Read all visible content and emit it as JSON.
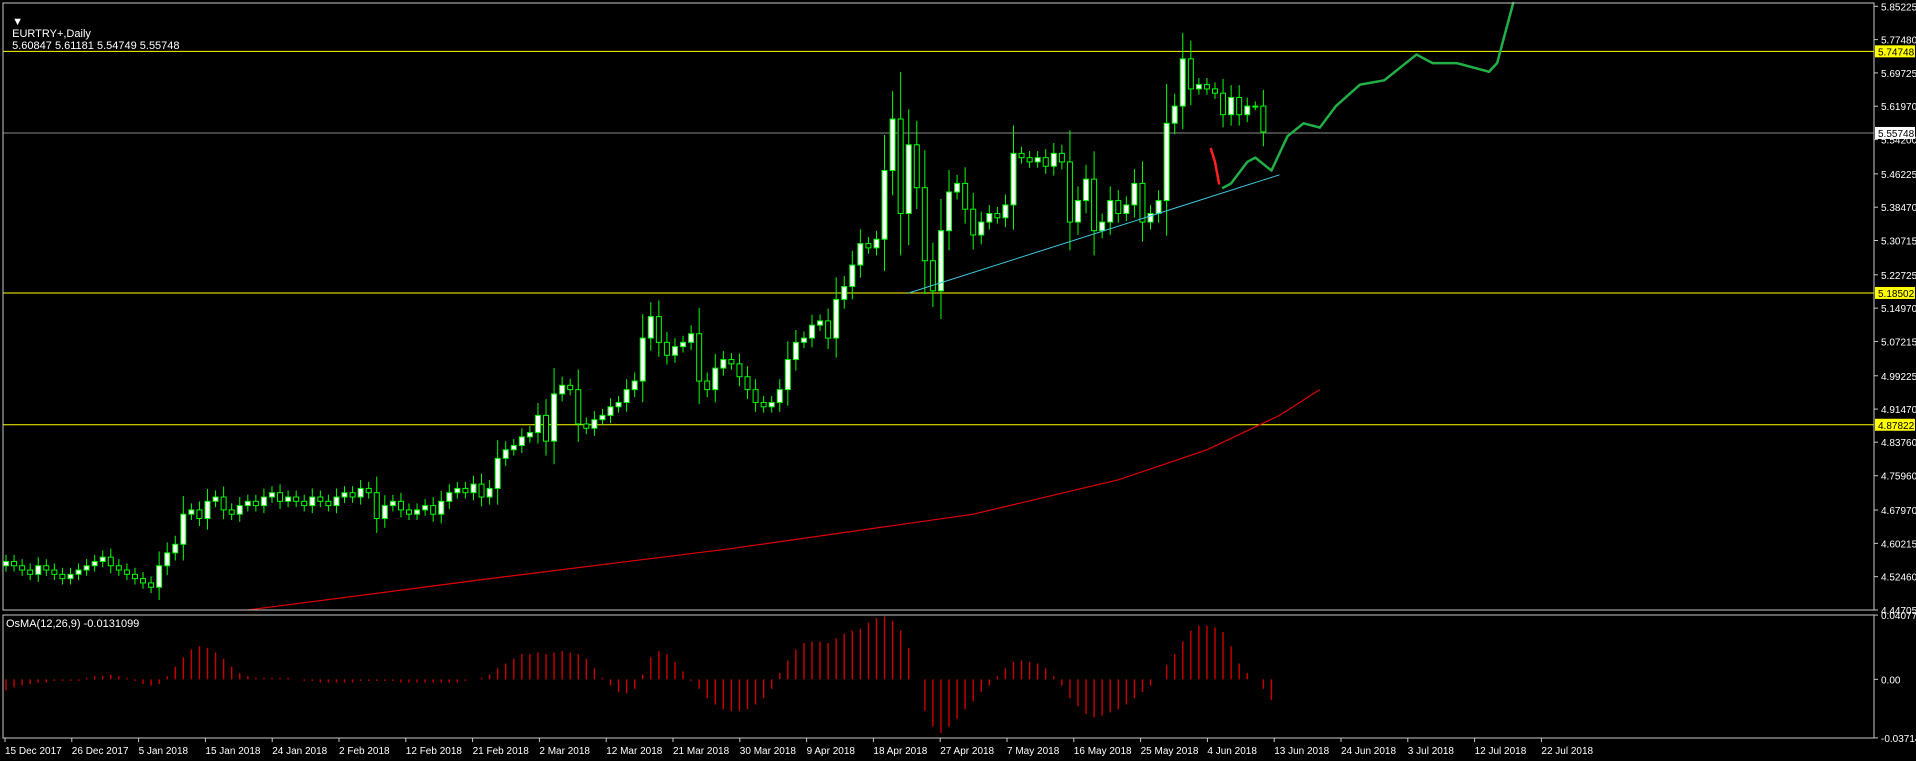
{
  "header": {
    "symbol": "EURTRY+,Daily",
    "ohlc": "5.60847 5.61181 5.54749 5.55748"
  },
  "indicator_header": "OsMA(12,26,9) -0.0131099",
  "colors": {
    "background": "#000000",
    "frame": "#c8c8c8",
    "bull_candle": "#ffffff",
    "bear_candle": "#000000",
    "candle_outline": "#00ff00",
    "level_line": "#ffff00",
    "current_line": "#8c8c8c",
    "trendline": "#40c8e0",
    "ma_line": "#e00000",
    "projection_green": "#22b046",
    "projection_red": "#ff2020",
    "osma_bar": "#cc0000",
    "text": "#ffffff"
  },
  "chart_data": [
    {
      "type": "candlestick",
      "symbol": "EURTRY+",
      "timeframe": "Daily",
      "ylim": [
        4.447,
        5.86
      ],
      "price_ticks": [
        "5.85225",
        "5.77480",
        "5.69725",
        "5.61970",
        "5.54200",
        "5.46225",
        "5.38470",
        "5.30715",
        "5.22725",
        "5.14970",
        "5.07215",
        "4.99225",
        "4.91470",
        "4.83760",
        "4.75960",
        "4.67970",
        "4.60215",
        "4.52460",
        "4.44705"
      ],
      "date_labels": [
        "15 Dec 2017",
        "26 Dec 2017",
        "5 Jan 2018",
        "15 Jan 2018",
        "24 Jan 2018",
        "2 Feb 2018",
        "12 Feb 2018",
        "21 Feb 2018",
        "2 Mar 2018",
        "12 Mar 2018",
        "21 Mar 2018",
        "30 Mar 2018",
        "9 Apr 2018",
        "18 Apr 2018",
        "27 Apr 2018",
        "7 May 2018",
        "16 May 2018",
        "25 May 2018",
        "4 Jun 2018",
        "13 Jun 2018",
        "24 Jun 2018",
        "3 Jul 2018",
        "12 Jul 2018",
        "22 Jul 2018"
      ],
      "close_series": [
        4.56,
        4.55,
        4.54,
        4.53,
        4.55,
        4.54,
        4.53,
        4.52,
        4.53,
        4.54,
        4.55,
        4.56,
        4.57,
        4.55,
        4.54,
        4.53,
        4.52,
        4.51,
        4.5,
        4.55,
        4.58,
        4.6,
        4.67,
        4.68,
        4.66,
        4.7,
        4.71,
        4.68,
        4.67,
        4.69,
        4.7,
        4.69,
        4.71,
        4.72,
        4.7,
        4.71,
        4.7,
        4.69,
        4.71,
        4.7,
        4.69,
        4.71,
        4.72,
        4.71,
        4.73,
        4.72,
        4.66,
        4.69,
        4.7,
        4.68,
        4.67,
        4.68,
        4.69,
        4.67,
        4.7,
        4.72,
        4.73,
        4.72,
        4.74,
        4.71,
        4.73,
        4.8,
        4.82,
        4.83,
        4.85,
        4.86,
        4.9,
        4.84,
        4.95,
        4.97,
        4.96,
        4.88,
        4.87,
        4.89,
        4.9,
        4.92,
        4.93,
        4.96,
        4.98,
        5.08,
        5.13,
        5.07,
        5.04,
        5.06,
        5.07,
        5.09,
        4.98,
        4.96,
        5.01,
        5.03,
        5.02,
        4.99,
        4.96,
        4.93,
        4.92,
        4.93,
        4.96,
        5.03,
        5.07,
        5.08,
        5.11,
        5.12,
        5.08,
        5.17,
        5.2,
        5.25,
        5.3,
        5.29,
        5.31,
        5.47,
        5.59,
        5.37,
        5.53,
        5.43,
        5.26,
        5.19,
        5.33,
        5.42,
        5.44,
        5.38,
        5.32,
        5.35,
        5.37,
        5.36,
        5.39,
        5.51,
        5.5,
        5.49,
        5.5,
        5.48,
        5.51,
        5.49,
        5.35,
        5.4,
        5.45,
        5.33,
        5.35,
        5.4,
        5.37,
        5.39,
        5.44,
        5.35,
        5.37,
        5.4,
        5.58,
        5.62,
        5.73,
        5.66,
        5.67,
        5.66,
        5.65,
        5.6,
        5.64,
        5.6,
        5.62,
        5.62,
        5.56
      ],
      "last_price": 5.55748,
      "levels": [
        5.74748,
        5.18502,
        4.87822
      ],
      "current_price_label": "5.55748",
      "ma_line": [
        [
          30,
          4.447
        ],
        [
          60,
          4.52
        ],
        [
          90,
          4.59
        ],
        [
          120,
          4.67
        ],
        [
          138,
          4.75
        ],
        [
          149,
          4.82
        ],
        [
          158,
          4.9
        ],
        [
          163,
          4.96
        ]
      ],
      "trendline": [
        [
          112,
          5.185
        ],
        [
          158,
          5.46
        ]
      ],
      "projection_red": [
        [
          149.5,
          5.52
        ],
        [
          150,
          5.49
        ],
        [
          150.5,
          5.44
        ]
      ],
      "projection_green": [
        [
          151,
          5.43
        ],
        [
          152,
          5.44
        ],
        [
          154,
          5.49
        ],
        [
          155,
          5.5
        ],
        [
          157,
          5.47
        ],
        [
          158,
          5.51
        ],
        [
          159,
          5.55
        ],
        [
          161,
          5.58
        ],
        [
          163,
          5.57
        ],
        [
          165,
          5.62
        ],
        [
          168,
          5.67
        ],
        [
          171,
          5.68
        ],
        [
          173,
          5.71
        ],
        [
          175,
          5.74
        ],
        [
          177,
          5.72
        ],
        [
          180,
          5.72
        ],
        [
          182,
          5.71
        ],
        [
          184,
          5.7
        ],
        [
          185,
          5.72
        ],
        [
          186,
          5.79
        ],
        [
          187,
          5.86
        ]
      ]
    },
    {
      "type": "bar",
      "title": "OsMA(12,26,9) -0.0131099",
      "ylim": [
        -0.0372,
        0.0408
      ],
      "ticks": [
        "0.040773",
        "0.00",
        "-0.037143"
      ],
      "values": [
        -0.007,
        -0.005,
        -0.004,
        -0.003,
        -0.002,
        -0.002,
        -0.001,
        -0.001,
        -0.001,
        -0.001,
        0.001,
        0.002,
        0.002,
        0.003,
        0.002,
        0.001,
        -0.001,
        -0.003,
        -0.004,
        -0.003,
        0.002,
        0.008,
        0.014,
        0.019,
        0.021,
        0.02,
        0.017,
        0.013,
        0.008,
        0.004,
        0.002,
        0.001,
        0.001,
        0.001,
        0.001,
        0.001,
        0.0,
        -0.001,
        -0.001,
        -0.002,
        -0.002,
        -0.002,
        -0.002,
        -0.002,
        -0.001,
        -0.001,
        -0.001,
        -0.001,
        -0.001,
        -0.002,
        -0.002,
        -0.002,
        -0.002,
        -0.002,
        -0.002,
        -0.002,
        -0.002,
        -0.001,
        0.0,
        0.001,
        0.003,
        0.007,
        0.01,
        0.013,
        0.016,
        0.016,
        0.017,
        0.016,
        0.017,
        0.018,
        0.017,
        0.016,
        0.013,
        0.007,
        0.001,
        -0.004,
        -0.008,
        -0.009,
        -0.006,
        0.003,
        0.014,
        0.018,
        0.016,
        0.011,
        0.005,
        -0.001,
        -0.006,
        -0.012,
        -0.016,
        -0.019,
        -0.02,
        -0.02,
        -0.019,
        -0.016,
        -0.012,
        -0.006,
        0.004,
        0.012,
        0.019,
        0.023,
        0.024,
        0.024,
        0.023,
        0.026,
        0.029,
        0.031,
        0.032,
        0.036,
        0.039,
        0.04,
        0.037,
        0.031,
        0.02,
        0.0,
        -0.02,
        -0.03,
        -0.034,
        -0.03,
        -0.025,
        -0.019,
        -0.014,
        -0.008,
        -0.004,
        0.002,
        0.007,
        0.011,
        0.012,
        0.011,
        0.01,
        0.007,
        0.002,
        -0.004,
        -0.012,
        -0.017,
        -0.022,
        -0.024,
        -0.023,
        -0.021,
        -0.019,
        -0.016,
        -0.012,
        -0.008,
        -0.004,
        0.0,
        0.009,
        0.016,
        0.024,
        0.031,
        0.034,
        0.034,
        0.033,
        0.03,
        0.021,
        0.01,
        0.004,
        0.0,
        -0.006,
        -0.013
      ]
    }
  ]
}
